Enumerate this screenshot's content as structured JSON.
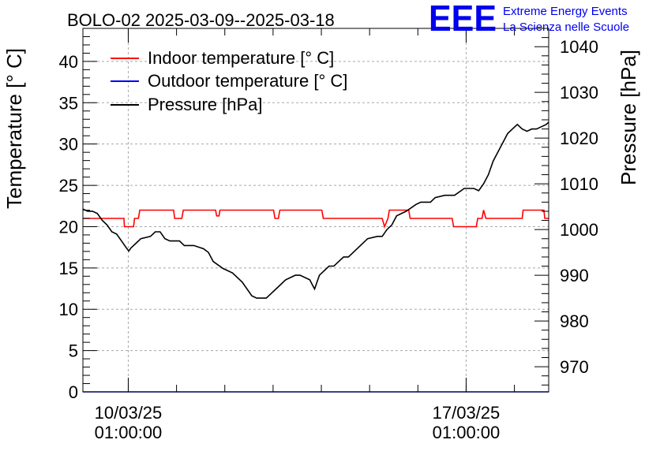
{
  "chart_data": {
    "type": "line",
    "title": "BOLO-02 2025-03-09--2025-03-18",
    "ylabel_left": "Temperature [° C]",
    "ylabel_right": "Pressure [hPa]",
    "xlabel": "",
    "x_units": "days since 2025-03-09 00:00",
    "xlim": [
      0.1,
      9.75
    ],
    "ylim_left": [
      0,
      44
    ],
    "ylim_right": [
      964.5,
      1044
    ],
    "left_ticks": [
      "0",
      "5",
      "10",
      "15",
      "20",
      "25",
      "30",
      "35",
      "40"
    ],
    "right_ticks": [
      "970",
      "980",
      "990",
      "1000",
      "1010",
      "1020",
      "1030",
      "1040"
    ],
    "x_ticks": [
      {
        "x": 1.04,
        "line1": "10/03/25",
        "line2": "01:00:00"
      },
      {
        "x": 8.04,
        "line1": "17/03/25",
        "line2": "01:00:00"
      }
    ],
    "grid": true,
    "legend_position": "top-left",
    "series": [
      {
        "name": "Indoor temperature [° C]",
        "color": "#ff0000",
        "axis": "left",
        "x": [
          0.1,
          0.95,
          0.96,
          1.15,
          1.17,
          1.25,
          1.28,
          1.98,
          2.0,
          2.15,
          2.18,
          2.85,
          2.87,
          2.92,
          2.94,
          4.05,
          4.08,
          4.15,
          4.18,
          5.05,
          5.08,
          6.3,
          6.35,
          6.42,
          6.45,
          6.85,
          6.88,
          6.95,
          6.98,
          7.75,
          7.78,
          8.25,
          8.28,
          8.37,
          8.4,
          8.45,
          8.48,
          9.2,
          9.22,
          9.65,
          9.67,
          9.75
        ],
        "y": [
          21,
          21,
          20,
          20,
          21,
          21,
          22,
          22,
          21,
          21,
          22,
          22,
          21.3,
          21.3,
          22,
          22,
          21,
          21,
          22,
          22,
          21,
          21,
          20,
          21,
          22,
          22,
          21,
          21,
          21,
          21,
          20,
          20,
          21,
          21,
          22,
          21,
          21,
          21,
          22,
          22,
          21,
          21
        ]
      },
      {
        "name": "Outdoor temperature [° C]",
        "color": "#0000ff",
        "axis": "left",
        "x": [
          0.1,
          9.75
        ],
        "y": [
          0,
          0
        ]
      },
      {
        "name": "Pressure [hPa]",
        "color": "#000000",
        "axis": "right",
        "x": [
          0.1,
          0.2,
          0.3,
          0.4,
          0.5,
          0.6,
          0.7,
          0.8,
          0.9,
          1.0,
          1.05,
          1.1,
          1.2,
          1.3,
          1.5,
          1.6,
          1.7,
          1.8,
          1.9,
          2.1,
          2.2,
          2.4,
          2.6,
          2.7,
          2.8,
          3.0,
          3.2,
          3.4,
          3.6,
          3.7,
          3.8,
          3.9,
          4.0,
          4.1,
          4.3,
          4.5,
          4.6,
          4.8,
          4.85,
          4.9,
          5.0,
          5.1,
          5.2,
          5.25,
          5.3,
          5.4,
          5.5,
          5.6,
          5.8,
          6.0,
          6.2,
          6.3,
          6.4,
          6.5,
          6.6,
          6.8,
          7.0,
          7.1,
          7.2,
          7.3,
          7.4,
          7.6,
          7.8,
          8.0,
          8.2,
          8.3,
          8.4,
          8.5,
          8.6,
          8.7,
          8.9,
          9.0,
          9.1,
          9.2,
          9.3,
          9.4,
          9.5,
          9.6,
          9.7,
          9.75
        ],
        "y": [
          1004.5,
          1004,
          1004,
          1003.5,
          1002,
          1001,
          999.5,
          999,
          997.5,
          996,
          995.3,
          996,
          997,
          998,
          998.5,
          999.5,
          999.5,
          998,
          997.5,
          997.5,
          996.5,
          996.5,
          995.8,
          995,
          993,
          991.5,
          990.5,
          988.5,
          985.5,
          985,
          985,
          985,
          986,
          987,
          989,
          990,
          990,
          989,
          988,
          987,
          990,
          991,
          992,
          992,
          992,
          993,
          994,
          994,
          996,
          998,
          998.5,
          998.5,
          1000,
          1001,
          1003,
          1004,
          1005.5,
          1006,
          1006,
          1006,
          1007,
          1007.5,
          1007.5,
          1009,
          1009,
          1008.5,
          1010,
          1012,
          1015,
          1017,
          1021,
          1022,
          1023,
          1022,
          1021.5,
          1022,
          1022,
          1022.5,
          1023,
          1023.5
        ]
      }
    ]
  },
  "brand": {
    "logo": "EEE",
    "line1": "Extreme Energy Events",
    "line2": "La Scienza nelle Scuole"
  }
}
